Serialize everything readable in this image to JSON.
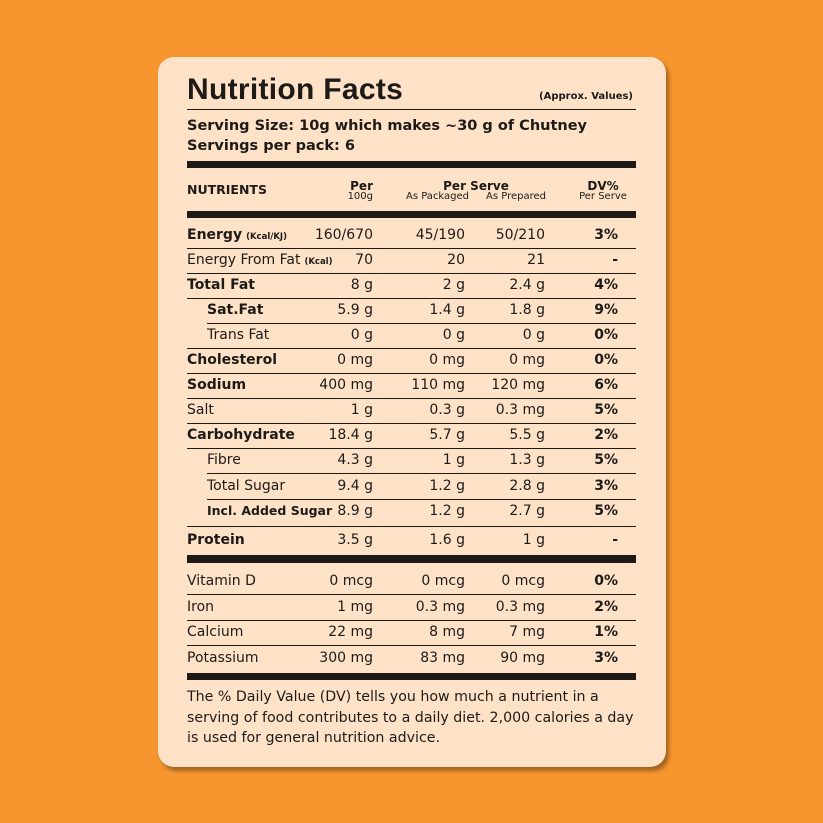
{
  "header": {
    "title": "Nutrition Facts",
    "note": "(Approx. Values)"
  },
  "serving": {
    "size": "Serving Size: 10g which makes ~30 g of Chutney",
    "per_pack": "Servings per pack: 6"
  },
  "table": {
    "columns": {
      "nutrients": "NUTRIENTS",
      "per": "Per",
      "per_unit": "100g",
      "per_serve": "Per Serve",
      "packaged": "As Packaged",
      "prepared": "As Prepared",
      "dv": "DV%",
      "dv_sub": "Per Serve"
    },
    "rows": [
      {
        "name": "Energy",
        "unit": "(Kcal/KJ)",
        "values": [
          "160/670",
          "45/190",
          "50/210",
          "3%"
        ]
      },
      {
        "name": "Energy From Fat",
        "unit": "(Kcal)",
        "values": [
          "70",
          "20",
          "21",
          "-"
        ]
      },
      {
        "name": "Total Fat",
        "values": [
          "8 g",
          "2 g",
          "2.4 g",
          "4%"
        ]
      },
      {
        "name": "Sat.Fat",
        "values": [
          "5.9 g",
          "1.4 g",
          "1.8 g",
          "9%"
        ]
      },
      {
        "name": "Trans Fat",
        "values": [
          "0 g",
          "0 g",
          "0 g",
          "0%"
        ]
      },
      {
        "name": "Cholesterol",
        "values": [
          "0 mg",
          "0 mg",
          "0 mg",
          "0%"
        ]
      },
      {
        "name": "Sodium",
        "values": [
          "400 mg",
          "110 mg",
          "120 mg",
          "6%"
        ]
      },
      {
        "name": "Salt",
        "values": [
          "1 g",
          "0.3 g",
          "0.3 mg",
          "5%"
        ]
      },
      {
        "name": "Carbohydrate",
        "values": [
          "18.4 g",
          "5.7 g",
          "5.5 g",
          "2%"
        ]
      },
      {
        "name": "Fibre",
        "values": [
          "4.3 g",
          "1 g",
          "1.3 g",
          "5%"
        ]
      },
      {
        "name": "Total Sugar",
        "values": [
          "9.4 g",
          "1.2 g",
          "2.8 g",
          "3%"
        ]
      },
      {
        "name": "Incl. Added Sugar",
        "values": [
          "8.9 g",
          "1.2 g",
          "2.7 g",
          "5%"
        ]
      },
      {
        "name": "Protein",
        "values": [
          "3.5 g",
          "1.6 g",
          "1 g",
          "-"
        ]
      }
    ],
    "minerals": [
      {
        "name": "Vitamin D",
        "values": [
          "0 mcg",
          "0 mcg",
          "0 mcg",
          "0%"
        ]
      },
      {
        "name": "Iron",
        "values": [
          "1 mg",
          "0.3 mg",
          "0.3 mg",
          "2%"
        ]
      },
      {
        "name": "Calcium",
        "values": [
          "22 mg",
          "8 mg",
          "7 mg",
          "1%"
        ]
      },
      {
        "name": "Potassium",
        "values": [
          "300 mg",
          "83 mg",
          "90 mg",
          "3%"
        ]
      }
    ]
  },
  "footer": "The % Daily Value (DV) tells you how much a nutrient in a serving of food contributes to a daily diet. 2,000 calories a day is used for general nutrition advice."
}
